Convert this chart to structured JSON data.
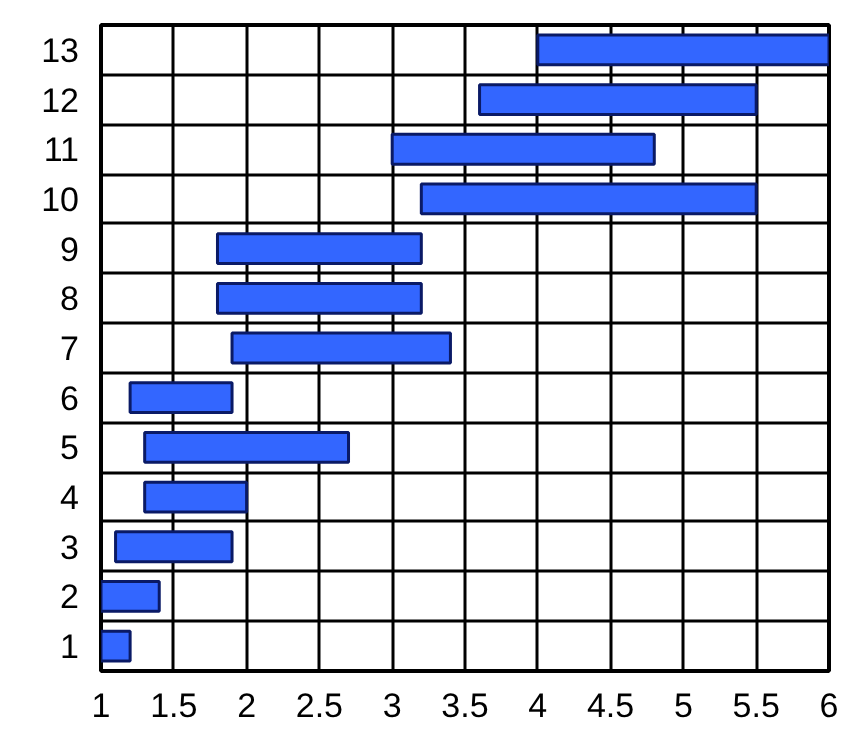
{
  "chart_data": {
    "type": "bar",
    "orientation": "horizontal",
    "categories": [
      "13",
      "12",
      "11",
      "10",
      "9",
      "8",
      "7",
      "6",
      "5",
      "4",
      "3",
      "2",
      "1"
    ],
    "base": [
      4,
      3.6,
      3,
      3.2,
      1.8,
      1.8,
      1.9,
      1.2,
      1.3,
      1.3,
      1.1,
      1,
      1
    ],
    "values": [
      2,
      1.9,
      1.8,
      2.3,
      1.4,
      1.4,
      1.5,
      0.7,
      1.4,
      0.7,
      0.8,
      0.4,
      0.2
    ],
    "color": "#3366ff",
    "xlim": [
      1,
      6
    ],
    "xticks": [
      1,
      1.5,
      2,
      2.5,
      3,
      3.5,
      4,
      4.5,
      5,
      5.5,
      6
    ],
    "grid": true
  }
}
